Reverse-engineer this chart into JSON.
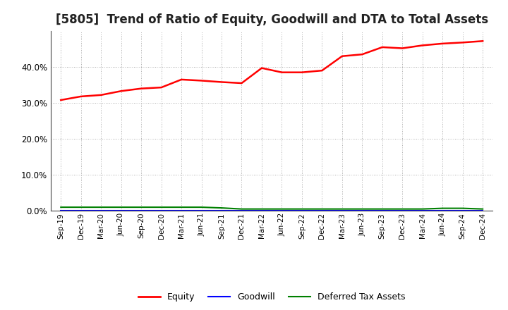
{
  "title": "[5805]  Trend of Ratio of Equity, Goodwill and DTA to Total Assets",
  "x_labels": [
    "Sep-19",
    "Dec-19",
    "Mar-20",
    "Jun-20",
    "Sep-20",
    "Dec-20",
    "Mar-21",
    "Jun-21",
    "Sep-21",
    "Dec-21",
    "Mar-22",
    "Jun-22",
    "Sep-22",
    "Dec-22",
    "Mar-23",
    "Jun-23",
    "Sep-23",
    "Dec-23",
    "Mar-24",
    "Jun-24",
    "Sep-24",
    "Dec-24"
  ],
  "equity": [
    0.308,
    0.318,
    0.322,
    0.333,
    0.34,
    0.343,
    0.365,
    0.362,
    0.358,
    0.355,
    0.397,
    0.385,
    0.385,
    0.39,
    0.43,
    0.435,
    0.455,
    0.452,
    0.46,
    0.465,
    0.468,
    0.472
  ],
  "goodwill": [
    0.0,
    0.0,
    0.0,
    0.0,
    0.0,
    0.0,
    0.0,
    0.0,
    0.0,
    0.0,
    0.0,
    0.0,
    0.0,
    0.0,
    0.0,
    0.0,
    0.0,
    0.0,
    0.0,
    0.0,
    0.0,
    0.0
  ],
  "dta": [
    0.01,
    0.01,
    0.01,
    0.01,
    0.01,
    0.01,
    0.01,
    0.01,
    0.008,
    0.005,
    0.005,
    0.005,
    0.005,
    0.005,
    0.005,
    0.005,
    0.005,
    0.005,
    0.005,
    0.007,
    0.007,
    0.005
  ],
  "equity_color": "#ff0000",
  "goodwill_color": "#0000ff",
  "dta_color": "#008000",
  "bg_color": "#ffffff",
  "plot_bg_color": "#ffffff",
  "grid_color": "#999999",
  "ylim": [
    0.0,
    0.5
  ],
  "yticks": [
    0.0,
    0.1,
    0.2,
    0.3,
    0.4
  ],
  "title_fontsize": 12,
  "legend_labels": [
    "Equity",
    "Goodwill",
    "Deferred Tax Assets"
  ]
}
